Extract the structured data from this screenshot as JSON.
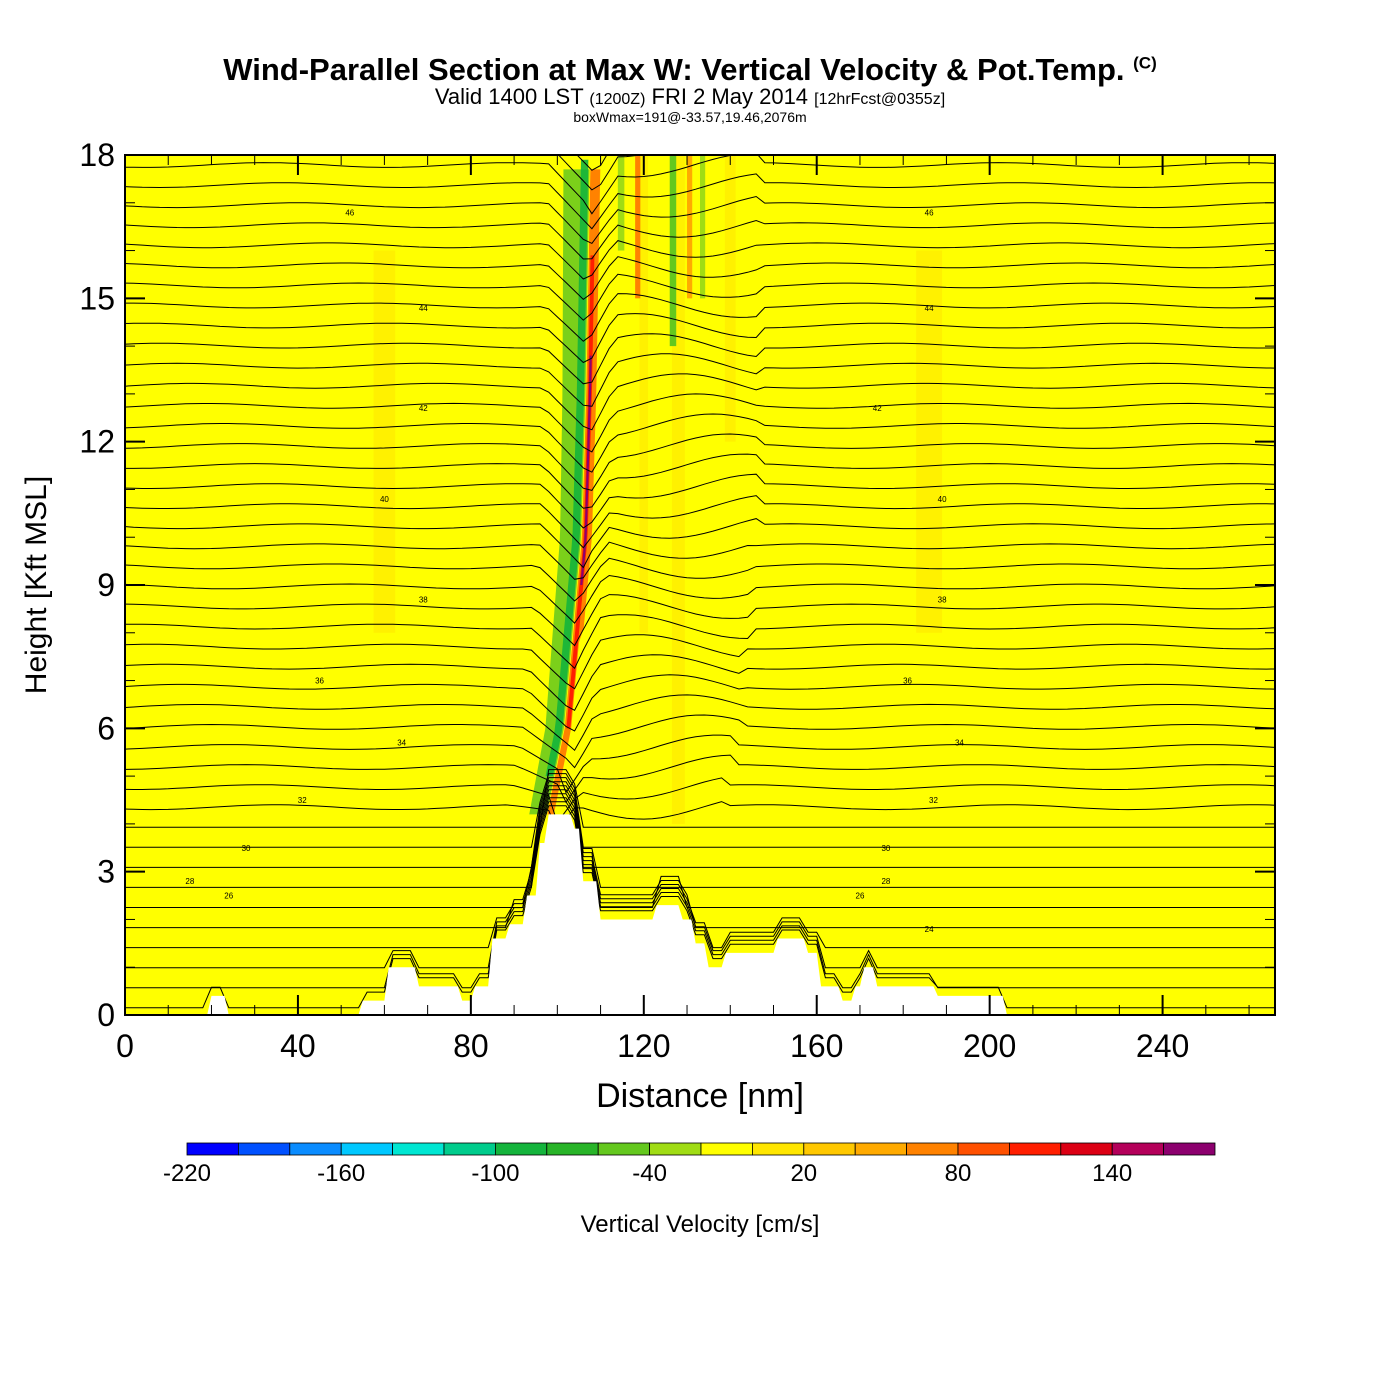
{
  "header": {
    "title": "Wind-Parallel Section at Max W: Vertical Velocity & Pot.Temp.",
    "copyright_mark": "(C)",
    "valid_prefix": "Valid 1400 LST",
    "valid_utc": "(1200Z)",
    "valid_date": "FRI 2 May 2014",
    "forecast_info": "[12hrFcst@0355z]",
    "box_info": "boxWmax=191@-33.57,19.46,2076m"
  },
  "colors": {
    "background_fill": "#ffff00",
    "terrain_fill": "#ffffff",
    "contour_line": "#000000",
    "frame": "#000000"
  },
  "chart_data": {
    "type": "contour-section",
    "xlabel": "Distance [nm]",
    "ylabel": "Height [Kft MSL]",
    "xlim": [
      0,
      266
    ],
    "ylim": [
      0,
      18
    ],
    "x_ticks": [
      0,
      40,
      80,
      120,
      160,
      200,
      240
    ],
    "y_ticks": [
      0,
      3,
      6,
      9,
      12,
      15,
      18
    ],
    "updraft_axis": {
      "x": [
        98,
        102,
        104,
        106,
        107,
        108
      ],
      "y": [
        4.2,
        6,
        8,
        10,
        13,
        18
      ]
    },
    "terrain": {
      "x": [
        0,
        19,
        20,
        23,
        24,
        54,
        55,
        60,
        61,
        67,
        68,
        77,
        78,
        80,
        81,
        84,
        85,
        88,
        89,
        92,
        93,
        95,
        96,
        97,
        98,
        103,
        104,
        105,
        106,
        109,
        110,
        122,
        123,
        128,
        129,
        131,
        132,
        134,
        135,
        138,
        139,
        150,
        151,
        157,
        158,
        160,
        161,
        165,
        166,
        168,
        169,
        170,
        171,
        173,
        174,
        180,
        181,
        187,
        188,
        203,
        204,
        266
      ],
      "y": [
        0,
        0,
        0.4,
        0.4,
        0,
        0,
        0.3,
        0.3,
        1.0,
        1.0,
        0.6,
        0.6,
        0.3,
        0.3,
        0.6,
        0.6,
        1.6,
        1.6,
        1.9,
        1.9,
        2.5,
        2.5,
        3.6,
        3.6,
        4.2,
        4.2,
        3.9,
        3.9,
        2.8,
        2.8,
        2.0,
        2.0,
        2.3,
        2.3,
        2.0,
        2.0,
        1.5,
        1.5,
        1.0,
        1.0,
        1.3,
        1.3,
        1.6,
        1.6,
        1.3,
        1.3,
        0.6,
        0.6,
        0.3,
        0.3,
        0.6,
        0.6,
        1.0,
        1.0,
        0.6,
        0.6,
        0.6,
        0.6,
        0.4,
        0.4,
        0,
        0
      ]
    },
    "theta_contours": [
      {
        "label": "46",
        "height": 16.8,
        "label_x": [
          52,
          186
        ]
      },
      {
        "label": "44",
        "height": 14.8,
        "label_x": [
          69,
          186
        ]
      },
      {
        "label": "42",
        "height": 12.7,
        "label_x": [
          69,
          174
        ]
      },
      {
        "label": "40",
        "height": 10.8,
        "label_x": [
          60,
          189
        ]
      },
      {
        "label": "38",
        "height": 8.7,
        "label_x": [
          69,
          189
        ]
      },
      {
        "label": "36",
        "height": 7.0,
        "label_x": [
          45,
          181
        ]
      },
      {
        "label": "34",
        "height": 5.7,
        "label_x": [
          64,
          193
        ]
      },
      {
        "label": "32",
        "height": 4.5,
        "label_x": [
          41,
          187
        ]
      },
      {
        "label": "30",
        "height": 3.5,
        "label_x": [
          28,
          176
        ]
      },
      {
        "label": "28",
        "height": 2.8,
        "label_x": [
          15,
          176
        ]
      },
      {
        "label": "26",
        "height": 2.5,
        "label_x": [
          24,
          170
        ]
      },
      {
        "label": "24",
        "height": 1.8,
        "label_x": [
          186
        ]
      }
    ],
    "colorbar": {
      "label": "Vertical Velocity [cm/s]",
      "tick_labels": [
        "-220",
        "-160",
        "-100",
        "-40",
        "20",
        "80",
        "140"
      ],
      "min": -220,
      "max": 180,
      "step": 20,
      "colors": [
        "#0000ff",
        "#0050ff",
        "#0a8cff",
        "#00c8ff",
        "#00e6d2",
        "#00cc8c",
        "#14b43c",
        "#28b428",
        "#64c81e",
        "#a0dc14",
        "#ffff00",
        "#ffe600",
        "#ffc800",
        "#ffaa00",
        "#ff8200",
        "#ff5000",
        "#ff1e00",
        "#dc0014",
        "#b4005a",
        "#8c006e"
      ]
    }
  }
}
